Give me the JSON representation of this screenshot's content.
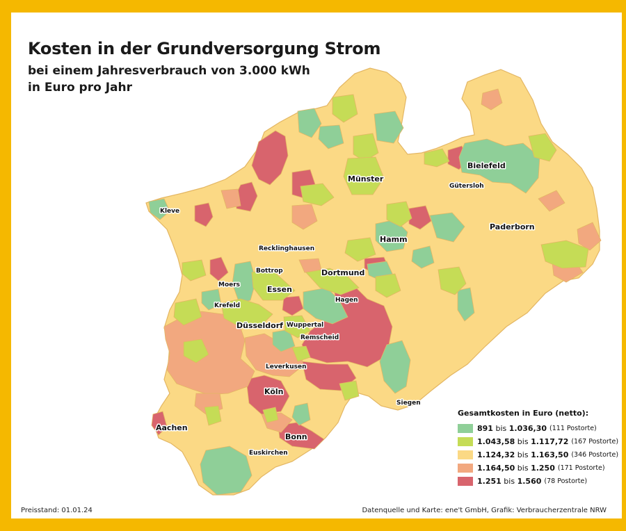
{
  "title": "Kosten in der Grundversorgung Strom",
  "subtitle_line1": "bei einem Jahresverbrauch von 3.000 kWh",
  "subtitle_line2": "in Euro pro Jahr",
  "colors": {
    "frame": "#f5b800",
    "base": "#fbd985",
    "green": "#8fcf98",
    "lime": "#c5dc56",
    "yellow": "#fbd985",
    "salmon": "#f2a87f",
    "red": "#d8646d",
    "border": "#e3b663"
  },
  "cities": {
    "muenster": "Münster",
    "bielefeld": "Bielefeld",
    "guetersloh": "Gütersloh",
    "paderborn": "Paderborn",
    "hamm": "Hamm",
    "kleve": "Kleve",
    "recklinghausen": "Recklinghausen",
    "bottrop": "Bottrop",
    "dortmund": "Dortmund",
    "moers": "Moers",
    "essen": "Essen",
    "hagen": "Hagen",
    "krefeld": "Krefeld",
    "duesseldorf": "Düsseldorf",
    "wuppertal": "Wuppertal",
    "remscheid": "Remscheid",
    "leverkusen": "Leverkusen",
    "koeln": "Köln",
    "siegen": "Siegen",
    "aachen": "Aachen",
    "bonn": "Bonn",
    "euskirchen": "Euskirchen"
  },
  "legend": {
    "title": "Gesamtkosten in Euro (netto):",
    "items": [
      {
        "from": "891",
        "sep": "bis",
        "to": "1.036,30",
        "count": "(111 Postorte)",
        "color": "#8fcf98"
      },
      {
        "from": "1.043,58",
        "sep": "bis",
        "to": "1.117,72",
        "count": "(167 Postorte)",
        "color": "#c5dc56"
      },
      {
        "from": "1.124,32",
        "sep": "bis",
        "to": "1.163,50",
        "count": "(346 Postorte)",
        "color": "#fbd985"
      },
      {
        "from": "1.164,50",
        "sep": "bis",
        "to": "1.250",
        "count": "(171 Postorte)",
        "color": "#f2a87f"
      },
      {
        "from": "1.251",
        "sep": "bis",
        "to": "1.560",
        "count": "(78 Postorte)",
        "color": "#d8646d"
      }
    ]
  },
  "footer_left": "Preisstand: 01.01.24",
  "footer_right": "Datenquelle und Karte: ene't GmbH, Grafik: Verbraucherzentrale NRW"
}
